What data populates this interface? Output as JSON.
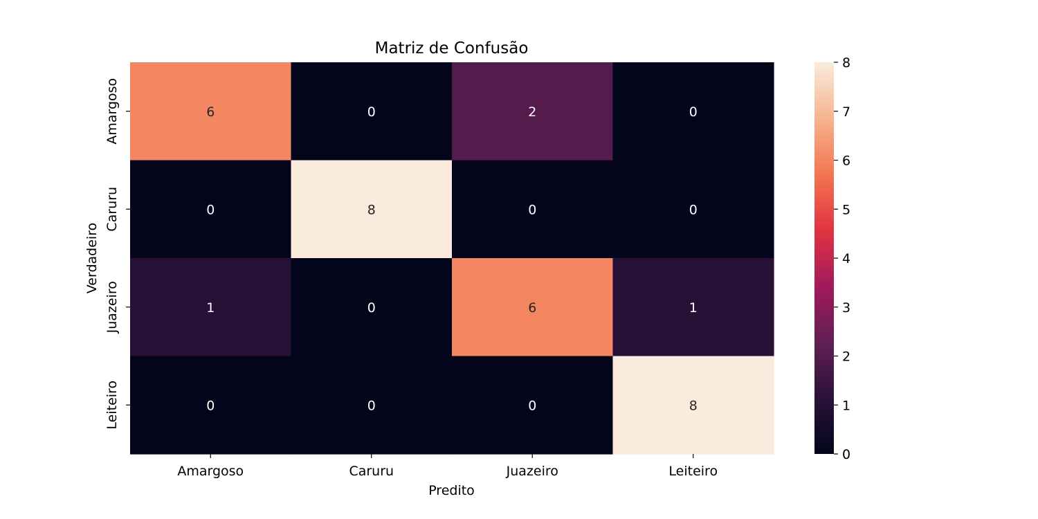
{
  "chart_data": {
    "type": "heatmap",
    "title": "Matriz de Confusão",
    "xlabel": "Predito",
    "ylabel": "Verdadeiro",
    "x_categories": [
      "Amargoso",
      "Caruru",
      "Juazeiro",
      "Leiteiro"
    ],
    "y_categories": [
      "Amargoso",
      "Caruru",
      "Juazeiro",
      "Leiteiro"
    ],
    "values": [
      [
        6,
        0,
        2,
        0
      ],
      [
        0,
        8,
        0,
        0
      ],
      [
        1,
        0,
        6,
        1
      ],
      [
        0,
        0,
        0,
        8
      ]
    ],
    "colorbar": {
      "min": 0,
      "max": 8,
      "ticks": [
        "0",
        "1",
        "2",
        "3",
        "4",
        "5",
        "6",
        "7",
        "8"
      ],
      "colormap": "rocket",
      "stops": [
        "#03051a",
        "#2b1239",
        "#611f53",
        "#a11a5b",
        "#e13342",
        "#f37651",
        "#f6b48f",
        "#faebdd"
      ]
    },
    "annotation_light_color": "#ffffff",
    "annotation_dark_color": "#262626"
  }
}
